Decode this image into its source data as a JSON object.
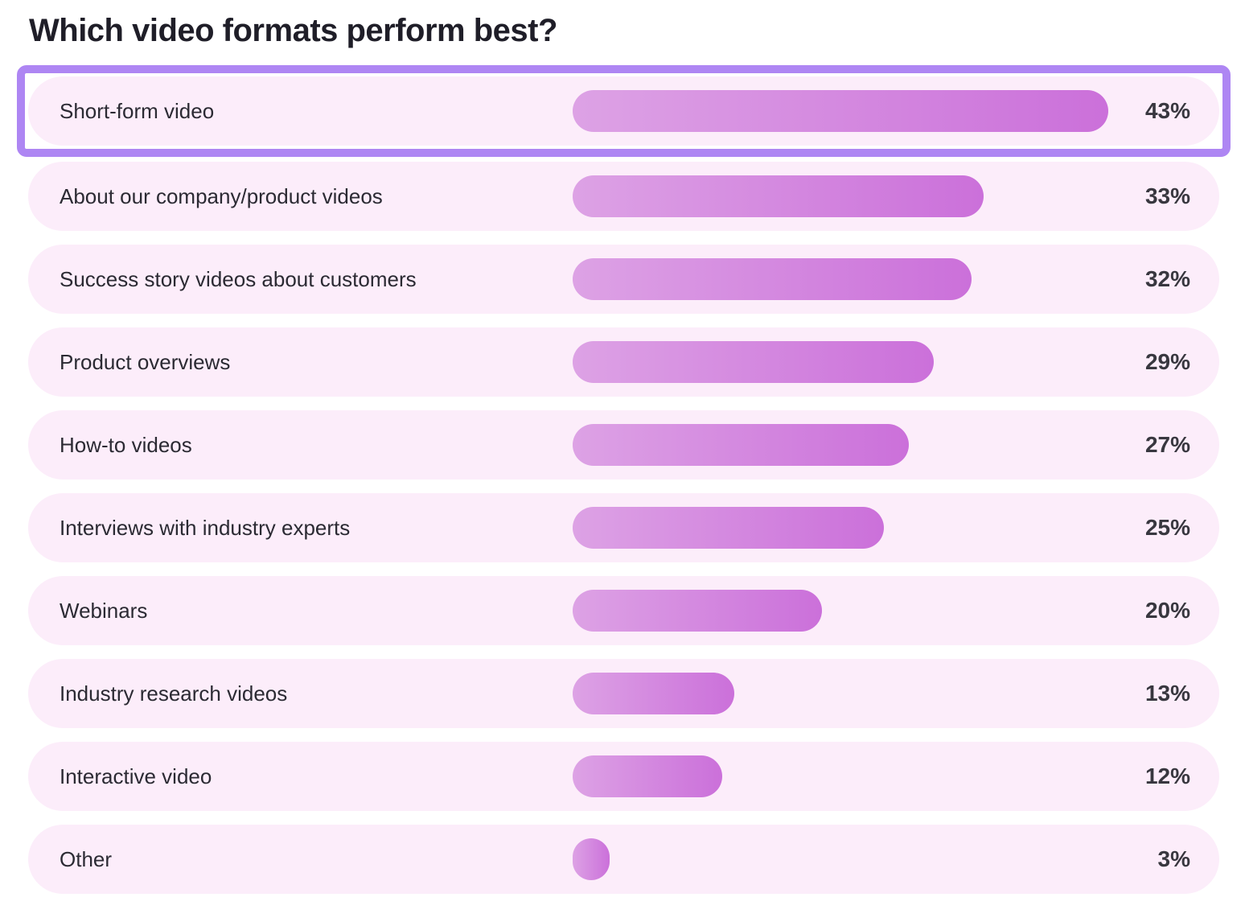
{
  "title": "Which video formats perform best?",
  "chart_data": {
    "type": "bar",
    "orientation": "horizontal",
    "title": "Which video formats perform best?",
    "categories": [
      "Short-form video",
      "About our company/product videos",
      "Success story videos about customers",
      "Product overviews",
      "How-to videos",
      "Interviews with industry experts",
      "Webinars",
      "Industry research videos",
      "Interactive video",
      "Other"
    ],
    "values": [
      43,
      33,
      32,
      29,
      27,
      25,
      20,
      13,
      12,
      3
    ],
    "value_labels": [
      "43%",
      "33%",
      "32%",
      "29%",
      "27%",
      "25%",
      "20%",
      "13%",
      "12%",
      "3%"
    ],
    "xlabel": "",
    "ylabel": "",
    "xlim": [
      0,
      43
    ],
    "grid": false,
    "legend": false,
    "highlighted_category": "Short-form video"
  },
  "colors": {
    "page_background": "#ffffff",
    "row_background": "#fcedfa",
    "bar_gradient_start": "#dda2e5",
    "bar_gradient_end": "#cb70da",
    "highlight_border": "#ae86f3",
    "title_text": "#1f1e28",
    "label_text": "#2b2a33",
    "percent_text": "#38373f"
  }
}
